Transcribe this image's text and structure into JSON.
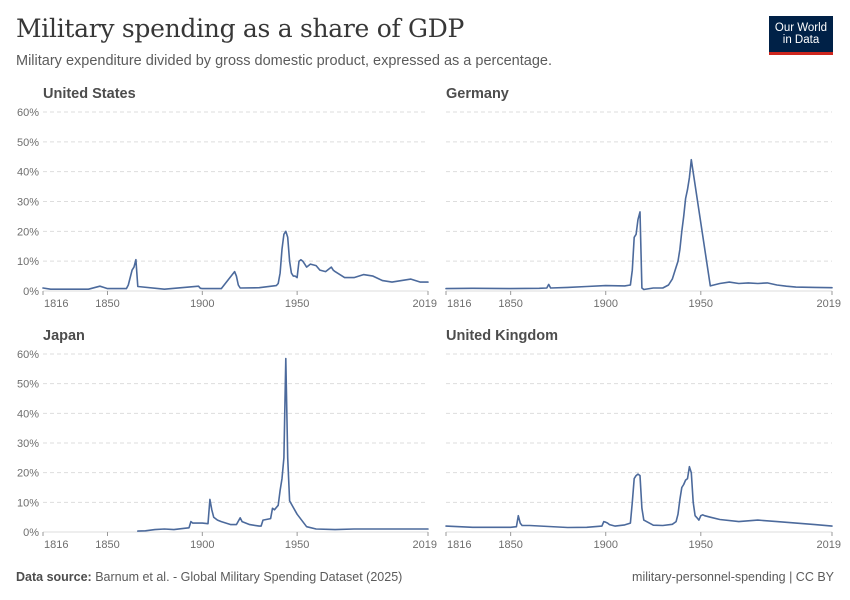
{
  "header": {
    "title": "Military spending as a share of GDP",
    "subtitle": "Military expenditure divided by gross domestic product, expressed as a percentage.",
    "logo_line1": "Our World",
    "logo_line2": "in Data"
  },
  "footer": {
    "source_label": "Data source:",
    "source_text": "Barnum et al. - Global Military Spending Dataset (2025)",
    "right_text": "military-personnel-spending | CC BY"
  },
  "colors": {
    "line": "#4c6a9c",
    "grid": "#dddddd",
    "logo_bg": "#002147",
    "logo_accent": "#ce261e"
  },
  "chart_data": [
    {
      "type": "line",
      "title": "United States",
      "ylim": [
        0,
        60
      ],
      "y_ticks": [
        "0%",
        "10%",
        "20%",
        "30%",
        "40%",
        "50%",
        "60%"
      ],
      "x_ticks": [
        "1816",
        "1850",
        "1900",
        "1950",
        "2019"
      ],
      "grid": true,
      "series": [
        {
          "x": [
            1816,
            1820,
            1830,
            1840,
            1846,
            1848,
            1850,
            1860,
            1861,
            1863,
            1864,
            1865,
            1866,
            1880,
            1898,
            1899,
            1900,
            1910,
            1917,
            1918,
            1919,
            1920,
            1930,
            1939,
            1940,
            1941,
            1942,
            1943,
            1944,
            1945,
            1946,
            1947,
            1948,
            1949,
            1950,
            1951,
            1952,
            1953,
            1954,
            1955,
            1957,
            1960,
            1962,
            1965,
            1967,
            1968,
            1969,
            1970,
            1975,
            1980,
            1985,
            1990,
            1995,
            2000,
            2005,
            2010,
            2015,
            2019
          ],
          "y": [
            1,
            0.6,
            0.6,
            0.6,
            1.6,
            1.2,
            0.8,
            0.8,
            2,
            7,
            8,
            10.5,
            1.5,
            0.6,
            1.6,
            0.9,
            0.8,
            0.8,
            6.5,
            5,
            2,
            1,
            1.1,
            1.8,
            2.5,
            6,
            14,
            19,
            20,
            18,
            10,
            6,
            5,
            5,
            4.5,
            10,
            10.5,
            10,
            9,
            8,
            9,
            8.5,
            7,
            6.5,
            7.5,
            8,
            7,
            6.5,
            4.5,
            4.5,
            5.5,
            5,
            3.5,
            3,
            3.5,
            4,
            3,
            3
          ]
        }
      ]
    },
    {
      "type": "line",
      "title": "Germany",
      "ylim": [
        0,
        60
      ],
      "y_ticks": [
        "0%",
        "10%",
        "20%",
        "30%",
        "40%",
        "50%",
        "60%"
      ],
      "x_ticks": [
        "1816",
        "1850",
        "1900",
        "1950",
        "2019"
      ],
      "grid": true,
      "series": [
        {
          "x": [
            1816,
            1830,
            1850,
            1865,
            1869,
            1870,
            1871,
            1880,
            1890,
            1900,
            1910,
            1913,
            1914,
            1915,
            1916,
            1917,
            1918,
            1919,
            1920,
            1925,
            1930,
            1933,
            1935,
            1936,
            1937,
            1938,
            1939,
            1940,
            1941,
            1942,
            1943,
            1944,
            1945,
            1955,
            1960,
            1965,
            1970,
            1975,
            1980,
            1985,
            1990,
            1995,
            2000,
            2010,
            2019
          ],
          "y": [
            0.8,
            0.9,
            0.8,
            0.9,
            1,
            2.2,
            1,
            1.2,
            1.5,
            1.8,
            1.7,
            2,
            7,
            18,
            19,
            24,
            26.5,
            1,
            0.5,
            1,
            1,
            2,
            4,
            6,
            8,
            10,
            14,
            20,
            25,
            31,
            34,
            38,
            44,
            1.7,
            2.5,
            3,
            2.5,
            2.7,
            2.5,
            2.7,
            2,
            1.6,
            1.3,
            1.2,
            1.1
          ]
        }
      ]
    },
    {
      "type": "line",
      "title": "Japan",
      "ylim": [
        0,
        60
      ],
      "y_ticks": [
        "0%",
        "10%",
        "20%",
        "30%",
        "40%",
        "50%",
        "60%"
      ],
      "x_ticks": [
        "1816",
        "1850",
        "1900",
        "1950",
        "2019"
      ],
      "grid": true,
      "series": [
        {
          "x": [
            1866,
            1870,
            1875,
            1880,
            1885,
            1890,
            1893,
            1894,
            1895,
            1896,
            1900,
            1903,
            1904,
            1905,
            1906,
            1908,
            1910,
            1915,
            1918,
            1920,
            1921,
            1925,
            1930,
            1931,
            1932,
            1936,
            1937,
            1938,
            1940,
            1941,
            1942,
            1943,
            1944,
            1945,
            1946,
            1950,
            1955,
            1960,
            1970,
            1980,
            1990,
            2000,
            2010,
            2019
          ],
          "y": [
            0.3,
            0.4,
            0.8,
            1,
            0.8,
            1.2,
            1.4,
            3.5,
            3,
            3,
            3,
            2.8,
            11,
            7.5,
            5,
            4,
            3.5,
            2.5,
            2.5,
            4.8,
            3.5,
            2.5,
            2,
            2,
            4,
            4.5,
            8,
            7.5,
            9,
            14,
            18,
            25,
            58.5,
            25,
            10.5,
            6,
            1.8,
            1,
            0.8,
            1,
            1,
            1,
            1,
            1
          ]
        }
      ]
    },
    {
      "type": "line",
      "title": "United Kingdom",
      "ylim": [
        0,
        60
      ],
      "y_ticks": [
        "0%",
        "10%",
        "20%",
        "30%",
        "40%",
        "50%",
        "60%"
      ],
      "x_ticks": [
        "1816",
        "1850",
        "1900",
        "1950",
        "2019"
      ],
      "grid": true,
      "series": [
        {
          "x": [
            1816,
            1830,
            1850,
            1853,
            1854,
            1855,
            1856,
            1857,
            1860,
            1880,
            1890,
            1898,
            1899,
            1900,
            1901,
            1902,
            1905,
            1910,
            1913,
            1914,
            1915,
            1916,
            1917,
            1918,
            1919,
            1920,
            1925,
            1930,
            1935,
            1937,
            1938,
            1939,
            1940,
            1941,
            1942,
            1943,
            1944,
            1945,
            1946,
            1947,
            1948,
            1949,
            1950,
            1951,
            1952,
            1955,
            1960,
            1970,
            1980,
            1990,
            2000,
            2010,
            2019
          ],
          "y": [
            2,
            1.6,
            1.6,
            1.8,
            5.5,
            3,
            2.2,
            2.2,
            2.2,
            1.5,
            1.6,
            2,
            3.5,
            3.3,
            3,
            2.5,
            2,
            2.4,
            3,
            10,
            18,
            19,
            19.5,
            19,
            8,
            4,
            2.3,
            2.2,
            2.6,
            3.5,
            6,
            11,
            15,
            16,
            17.5,
            18,
            22,
            20,
            10,
            5.5,
            4.8,
            4,
            5.5,
            5.8,
            5.5,
            5,
            4.2,
            3.5,
            4,
            3.5,
            3,
            2.5,
            2
          ]
        }
      ]
    }
  ]
}
